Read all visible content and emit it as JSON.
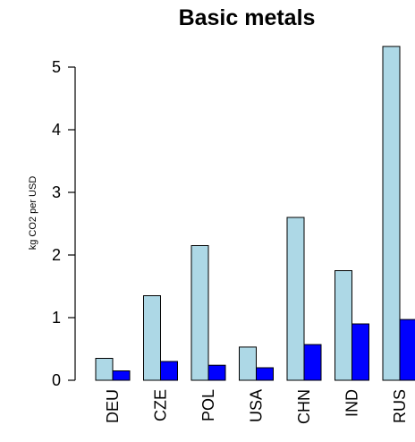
{
  "chart_data": {
    "type": "bar",
    "title": "Basic metals",
    "xlabel": "",
    "ylabel": "kg CO2 per USD",
    "categories": [
      "DEU",
      "CZE",
      "POL",
      "USA",
      "CHN",
      "IND",
      "RUS"
    ],
    "series": [
      {
        "color": "#add8e6",
        "values": [
          0.35,
          1.35,
          2.15,
          0.53,
          2.6,
          1.75,
          5.33
        ]
      },
      {
        "color": "#0000ff",
        "values": [
          0.15,
          0.3,
          0.24,
          0.2,
          0.57,
          0.9,
          0.97
        ]
      }
    ],
    "ylim": [
      0,
      5.5
    ],
    "yticks": [
      0,
      1,
      2,
      3,
      4,
      5
    ],
    "ytick_labels": [
      "0",
      "1",
      "2",
      "3",
      "4",
      "5"
    ],
    "grid": false,
    "legend": "none"
  }
}
